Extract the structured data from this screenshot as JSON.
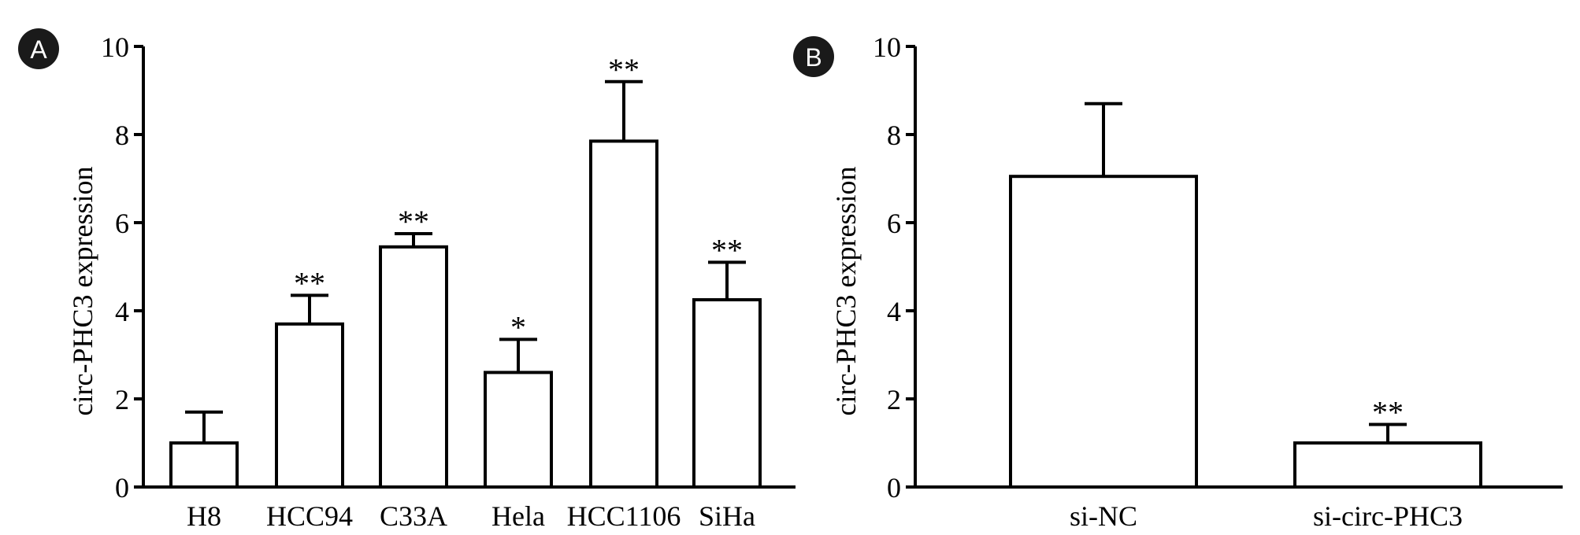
{
  "chart_data": [
    {
      "panel": "A",
      "type": "bar",
      "ylabel": "circ-PHC3 expression",
      "xlabel": "",
      "ylim": [
        0,
        10
      ],
      "yticks": [
        0,
        2,
        4,
        6,
        8,
        10
      ],
      "grid": false,
      "categories": [
        "H8",
        "HCC94",
        "C33A",
        "Hela",
        "HCC1106",
        "SiHa"
      ],
      "values": [
        1.0,
        3.7,
        5.45,
        2.6,
        7.85,
        4.25
      ],
      "errors": [
        0.7,
        0.65,
        0.3,
        0.75,
        1.35,
        0.85
      ],
      "significance": [
        "",
        "**",
        "**",
        "*",
        "**",
        "**"
      ]
    },
    {
      "panel": "B",
      "type": "bar",
      "ylabel": "circ-PHC3 expression",
      "xlabel": "",
      "ylim": [
        0,
        10
      ],
      "yticks": [
        0,
        2,
        4,
        6,
        8,
        10
      ],
      "grid": false,
      "categories": [
        "si-NC",
        "si-circ-PHC3"
      ],
      "values": [
        7.05,
        1.0
      ],
      "errors": [
        1.65,
        0.42
      ],
      "significance": [
        "",
        "**"
      ]
    }
  ],
  "style": {
    "bar_fill": "#ffffff",
    "stroke": "#000000",
    "label_badge": "#1a1a1a"
  }
}
